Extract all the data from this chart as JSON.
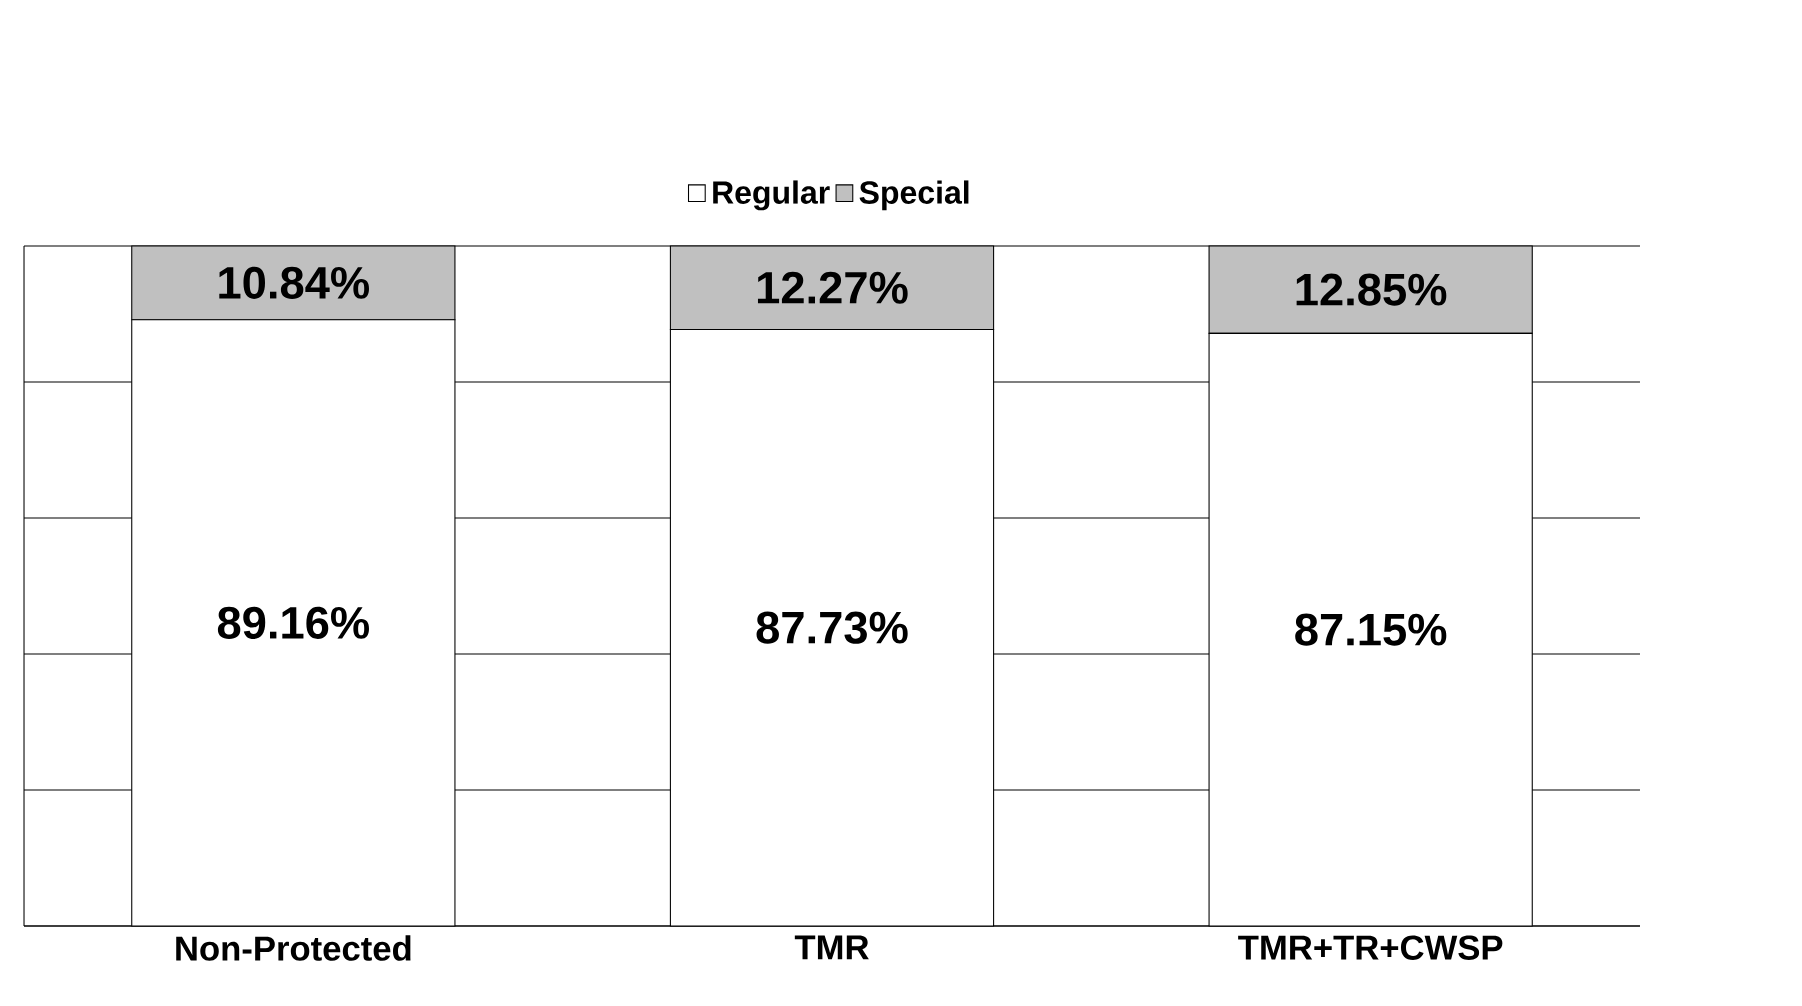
{
  "chart_data": {
    "type": "bar",
    "stacked": true,
    "categories": [
      "Non-Protected",
      "TMR",
      "TMR+TR+CWSP"
    ],
    "series": [
      {
        "name": "Regular",
        "color": "#ffffff",
        "values": [
          89.16,
          87.73,
          87.15
        ],
        "value_labels": [
          "89.16%",
          "87.73%",
          "87.15%"
        ]
      },
      {
        "name": "Special",
        "color": "#c0c0c0",
        "values": [
          10.84,
          12.27,
          12.85
        ],
        "value_labels": [
          "10.84%",
          "12.27%",
          "12.85%"
        ]
      }
    ],
    "ylim": [
      0,
      100
    ],
    "yticks": [
      {
        "value": 0,
        "label": null
      },
      {
        "value": 20,
        "label": null
      },
      {
        "value": 40,
        "label": null
      },
      {
        "value": 60,
        "label": null
      },
      {
        "value": 80,
        "label": null
      },
      {
        "value": 100,
        "label": null
      }
    ],
    "tick_labels": "x",
    "grid": "y",
    "legend": "top"
  }
}
